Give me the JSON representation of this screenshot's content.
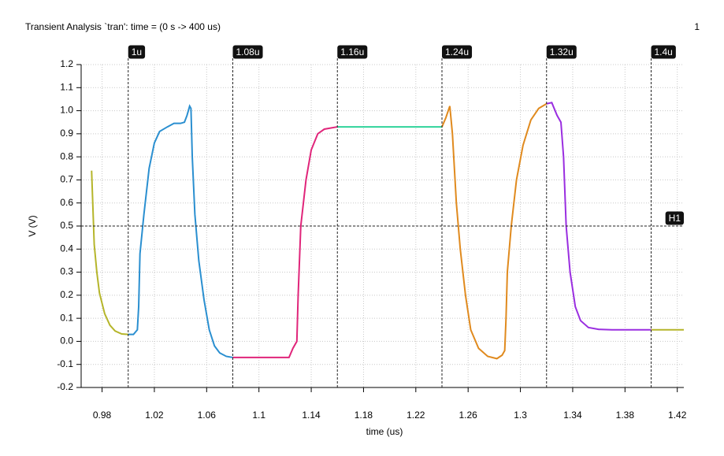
{
  "chart_data": {
    "type": "line",
    "title": "Transient Analysis `tran': time = (0 s -> 400 us)",
    "corner_label": "1",
    "x_label": "time (us)",
    "y_label": "V (V)",
    "xlim": [
      0.964,
      1.425
    ],
    "ylim": [
      -0.2,
      1.2
    ],
    "xticks": [
      0.98,
      1.02,
      1.06,
      1.1,
      1.14,
      1.18,
      1.22,
      1.26,
      1.3,
      1.34,
      1.38,
      1.42
    ],
    "yticks": [
      -0.2,
      -0.1,
      {
        "value": 0,
        "label": "0.0"
      },
      0.1,
      0.2,
      0.3,
      0.4,
      0.5,
      0.6,
      0.7,
      0.8,
      0.9,
      {
        "value": 1,
        "label": "1.0"
      },
      1.1,
      1.2
    ],
    "grid": true,
    "x_markers": [
      {
        "value": 1,
        "label": "1u"
      },
      {
        "value": 1.08,
        "label": "1.08u"
      },
      {
        "value": 1.16,
        "label": "1.16u"
      },
      {
        "value": 1.24,
        "label": "1.24u"
      },
      {
        "value": 1.32,
        "label": "1.32u"
      },
      {
        "value": 1.4,
        "label": "1.4u"
      }
    ],
    "y_markers": [
      {
        "value": 0.5,
        "label": "H1"
      }
    ],
    "series": [
      {
        "color": "#b5b52a",
        "x": [
          0.972,
          0.974,
          0.976,
          0.978,
          0.982,
          0.986,
          0.99,
          0.995,
          1.0
        ],
        "values": [
          0.74,
          0.42,
          0.3,
          0.21,
          0.12,
          0.07,
          0.045,
          0.032,
          0.03
        ]
      },
      {
        "color": "#2a8fd0",
        "x": [
          1.0,
          1.004,
          1.007,
          1.008,
          1.009,
          1.012,
          1.016,
          1.02,
          1.024,
          1.03,
          1.035,
          1.04,
          1.043,
          1.045,
          1.047,
          1.048,
          1.049,
          1.051,
          1.054,
          1.058,
          1.062,
          1.066,
          1.07,
          1.075,
          1.08
        ],
        "values": [
          0.03,
          0.03,
          0.05,
          0.15,
          0.38,
          0.55,
          0.75,
          0.86,
          0.91,
          0.93,
          0.945,
          0.945,
          0.95,
          0.98,
          1.02,
          1.01,
          0.8,
          0.55,
          0.35,
          0.18,
          0.05,
          -0.02,
          -0.05,
          -0.065,
          -0.07
        ]
      },
      {
        "color": "#e0257a",
        "x": [
          1.08,
          1.1,
          1.123,
          1.126,
          1.129,
          1.13,
          1.132,
          1.136,
          1.14,
          1.145,
          1.15,
          1.16
        ],
        "values": [
          -0.07,
          -0.07,
          -0.07,
          -0.03,
          0.0,
          0.2,
          0.5,
          0.7,
          0.83,
          0.9,
          0.92,
          0.93
        ]
      },
      {
        "color": "#2fd39a",
        "x": [
          1.16,
          1.24
        ],
        "values": [
          0.93,
          0.93
        ]
      },
      {
        "color": "#e08a1e",
        "x": [
          1.24,
          1.243,
          1.246,
          1.248,
          1.251,
          1.254,
          1.258,
          1.262,
          1.268,
          1.275,
          1.282,
          1.286,
          1.288,
          1.289,
          1.29,
          1.293,
          1.297,
          1.302,
          1.308,
          1.314,
          1.32
        ],
        "values": [
          0.93,
          0.97,
          1.02,
          0.9,
          0.6,
          0.4,
          0.2,
          0.05,
          -0.03,
          -0.065,
          -0.075,
          -0.06,
          -0.04,
          0.1,
          0.3,
          0.5,
          0.7,
          0.85,
          0.96,
          1.01,
          1.03
        ]
      },
      {
        "color": "#9a2ee0",
        "x": [
          1.32,
          1.324,
          1.328,
          1.331,
          1.333,
          1.335,
          1.338,
          1.342,
          1.346,
          1.352,
          1.36,
          1.37,
          1.4
        ],
        "values": [
          1.03,
          1.035,
          0.98,
          0.95,
          0.8,
          0.5,
          0.3,
          0.15,
          0.09,
          0.06,
          0.052,
          0.05,
          0.05
        ]
      },
      {
        "color": "#b5b52a",
        "x": [
          1.4,
          1.425
        ],
        "values": [
          0.05,
          0.05
        ]
      }
    ]
  }
}
